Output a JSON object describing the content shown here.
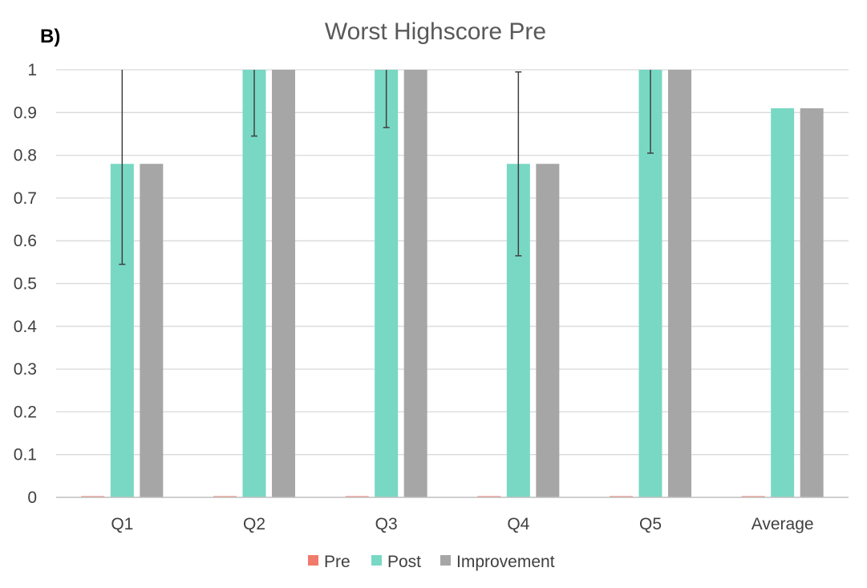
{
  "panel_label": "B)",
  "chart_data": {
    "type": "bar",
    "title": "Worst Highscore Pre",
    "xlabel": "",
    "ylabel": "",
    "categories": [
      "Q1",
      "Q2",
      "Q3",
      "Q4",
      "Q5",
      "Average"
    ],
    "ylim": [
      0,
      1
    ],
    "yticks": [
      "0",
      "0.1",
      "0.2",
      "0.3",
      "0.4",
      "0.5",
      "0.6",
      "0.7",
      "0.8",
      "0.9",
      "1"
    ],
    "grid": true,
    "legend_position": "bottom",
    "series": [
      {
        "name": "Pre",
        "color": "#f07b6c",
        "values": [
          0,
          0,
          0,
          0,
          0,
          0
        ]
      },
      {
        "name": "Post",
        "color": "#78d8c4",
        "values": [
          0.78,
          1.0,
          1.0,
          0.78,
          1.0,
          0.91
        ],
        "error": [
          0.235,
          0.155,
          0.135,
          0.215,
          0.195,
          null
        ]
      },
      {
        "name": "Improvement",
        "color": "#a6a6a6",
        "values": [
          0.78,
          1.0,
          1.0,
          0.78,
          1.0,
          0.91
        ]
      }
    ]
  }
}
